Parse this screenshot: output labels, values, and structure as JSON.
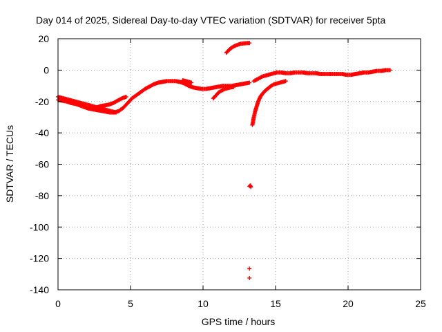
{
  "chart_data": {
    "type": "scatter",
    "title": "Day 014 of 2025, Sidereal Day-to-day VTEC variation (SDTVAR) for receiver 5pta",
    "xlabel": "GPS time / hours",
    "ylabel": "SDTVAR / TECUs",
    "xlim": [
      0,
      25
    ],
    "ylim": [
      -140,
      20
    ],
    "xticks": [
      0,
      5,
      10,
      15,
      20,
      25
    ],
    "yticks": [
      20,
      0,
      -20,
      -40,
      -60,
      -80,
      -100,
      -120,
      -140
    ],
    "grid": true,
    "marker": "+",
    "color": "#ff0000",
    "series": [
      {
        "name": "SDTVAR",
        "segments": [
          [
            [
              0.0,
              -19
            ],
            [
              0.3,
              -19.5
            ],
            [
              0.6,
              -20
            ],
            [
              0.9,
              -21
            ],
            [
              1.2,
              -21.5
            ],
            [
              1.5,
              -22.5
            ],
            [
              1.8,
              -23.5
            ],
            [
              2.1,
              -24.5
            ],
            [
              2.4,
              -25
            ],
            [
              2.7,
              -25.5
            ],
            [
              3.0,
              -26
            ],
            [
              3.3,
              -26.5
            ],
            [
              3.6,
              -27
            ],
            [
              3.9,
              -27
            ],
            [
              4.2,
              -26
            ],
            [
              4.5,
              -24
            ],
            [
              4.8,
              -21
            ],
            [
              5.1,
              -18
            ],
            [
              5.4,
              -16
            ],
            [
              5.7,
              -14
            ],
            [
              6.0,
              -12
            ],
            [
              6.3,
              -10.5
            ],
            [
              6.6,
              -9
            ],
            [
              6.9,
              -8
            ],
            [
              7.2,
              -7.5
            ],
            [
              7.5,
              -7
            ],
            [
              7.8,
              -7
            ],
            [
              8.1,
              -7
            ],
            [
              8.4,
              -7.5
            ],
            [
              8.7,
              -8.5
            ],
            [
              9.0,
              -10
            ],
            [
              9.3,
              -11
            ],
            [
              9.6,
              -11.5
            ],
            [
              9.9,
              -12
            ],
            [
              10.2,
              -12
            ],
            [
              10.5,
              -11.5
            ],
            [
              10.8,
              -11
            ],
            [
              11.1,
              -10.5
            ],
            [
              11.4,
              -10
            ],
            [
              11.7,
              -10
            ],
            [
              12.0,
              -10
            ],
            [
              12.3,
              -9.5
            ],
            [
              12.6,
              -9
            ],
            [
              12.9,
              -8.5
            ],
            [
              13.2,
              -8
            ]
          ],
          [
            [
              0.0,
              -17
            ],
            [
              0.4,
              -18
            ],
            [
              0.8,
              -19
            ],
            [
              1.2,
              -20
            ],
            [
              1.6,
              -21
            ],
            [
              2.0,
              -22
            ],
            [
              2.4,
              -23
            ],
            [
              2.8,
              -24
            ],
            [
              3.2,
              -25
            ],
            [
              3.6,
              -26
            ],
            [
              4.0,
              -27
            ]
          ],
          [
            [
              2.6,
              -24
            ],
            [
              2.9,
              -23
            ],
            [
              3.2,
              -22.5
            ],
            [
              3.5,
              -22
            ],
            [
              3.8,
              -21
            ],
            [
              4.1,
              -19.5
            ],
            [
              4.4,
              -18
            ],
            [
              4.7,
              -17
            ]
          ],
          [
            [
              8.6,
              -6.5
            ],
            [
              8.9,
              -7.2
            ],
            [
              9.2,
              -8
            ]
          ],
          [
            [
              10.7,
              -18
            ],
            [
              10.9,
              -16
            ],
            [
              11.1,
              -14
            ],
            [
              11.3,
              -13
            ],
            [
              11.5,
              -12
            ],
            [
              11.7,
              -11.5
            ],
            [
              11.9,
              -11
            ],
            [
              12.1,
              -10.8
            ]
          ],
          [
            [
              11.6,
              11
            ],
            [
              11.8,
              13
            ],
            [
              12.0,
              14.5
            ],
            [
              12.2,
              15.5
            ],
            [
              12.4,
              16.2
            ],
            [
              12.6,
              16.8
            ],
            [
              12.8,
              17
            ],
            [
              13.0,
              17.2
            ],
            [
              13.2,
              17.3
            ]
          ],
          [
            [
              13.4,
              -35
            ],
            [
              13.5,
              -30
            ],
            [
              13.6,
              -26
            ],
            [
              13.7,
              -23
            ],
            [
              13.8,
              -20
            ],
            [
              13.95,
              -17
            ],
            [
              14.1,
              -15
            ],
            [
              14.3,
              -13
            ],
            [
              14.5,
              -11.5
            ],
            [
              14.7,
              -10
            ],
            [
              14.9,
              -9
            ],
            [
              15.1,
              -8.5
            ],
            [
              15.3,
              -8
            ],
            [
              15.5,
              -7.5
            ],
            [
              15.7,
              -7
            ]
          ],
          [
            [
              13.5,
              -7
            ],
            [
              13.7,
              -6
            ],
            [
              13.9,
              -5
            ],
            [
              14.1,
              -4
            ],
            [
              14.3,
              -3.5
            ],
            [
              14.5,
              -3
            ],
            [
              14.7,
              -2.5
            ],
            [
              14.9,
              -2
            ],
            [
              15.1,
              -1.5
            ],
            [
              15.4,
              -1.5
            ],
            [
              15.7,
              -2
            ],
            [
              16.0,
              -2
            ],
            [
              16.3,
              -1.5
            ],
            [
              16.6,
              -1.5
            ],
            [
              16.9,
              -1.5
            ],
            [
              17.2,
              -2
            ],
            [
              17.5,
              -2
            ],
            [
              17.8,
              -2
            ],
            [
              18.1,
              -2.5
            ],
            [
              18.4,
              -2.5
            ],
            [
              18.7,
              -2.5
            ],
            [
              19.0,
              -2.5
            ],
            [
              19.3,
              -2.5
            ],
            [
              19.6,
              -2.5
            ],
            [
              19.9,
              -3
            ],
            [
              20.2,
              -3
            ],
            [
              20.5,
              -2.5
            ],
            [
              20.8,
              -2
            ],
            [
              21.1,
              -1.5
            ],
            [
              21.4,
              -1.5
            ],
            [
              21.7,
              -1
            ],
            [
              22.0,
              -0.5
            ],
            [
              22.3,
              -0.5
            ],
            [
              22.6,
              0
            ],
            [
              22.9,
              0
            ]
          ],
          [
            [
              13.2,
              -74
            ],
            [
              13.25,
              -73.5
            ],
            [
              13.3,
              -74.5
            ]
          ],
          [
            [
              13.2,
              -126.5
            ]
          ],
          [
            [
              13.2,
              -132.5
            ]
          ]
        ]
      }
    ]
  }
}
